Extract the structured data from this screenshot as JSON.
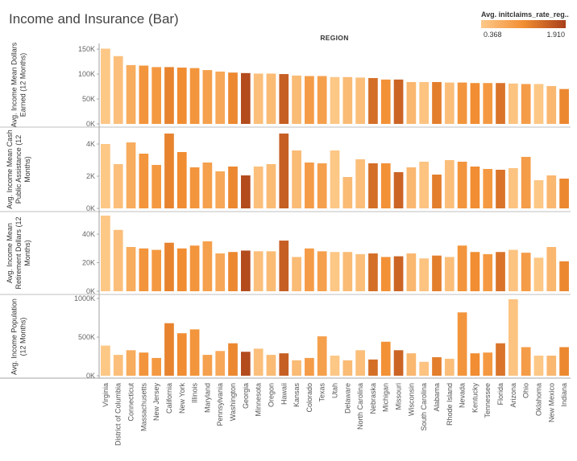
{
  "chart_data": {
    "type": "bar",
    "title": "Income and Insurance (Bar)",
    "column_header": "REGION",
    "legend": {
      "title": "Avg. initclaims_rate_reg..",
      "min": 0.368,
      "max": 1.91,
      "min_label": "0.368",
      "max_label": "1.910",
      "color_low": "#FDC98A",
      "color_high": "#A8401A"
    },
    "categories": [
      "Virginia",
      "District of Columbia",
      "Connecticut",
      "Massachusetts",
      "New Jersey",
      "California",
      "New York",
      "Illinois",
      "Maryland",
      "Pennsylvania",
      "Washington",
      "Georgia",
      "Minnesota",
      "Oregon",
      "Hawaii",
      "Kansas",
      "Colorado",
      "Texas",
      "Utah",
      "Delaware",
      "North Carolina",
      "Nebraska",
      "Michigan",
      "Missouri",
      "Wisconsin",
      "South Carolina",
      "Alabama",
      "Rhode Island",
      "Nevada",
      "Kentucky",
      "Tennessee",
      "Florida",
      "Arizona",
      "Ohio",
      "Oklahoma",
      "New Mexico",
      "Indiana"
    ],
    "color_values": [
      0.4,
      0.5,
      0.75,
      1.05,
      1.0,
      1.25,
      1.15,
      1.05,
      0.9,
      0.8,
      1.2,
      1.8,
      0.5,
      0.55,
      1.6,
      0.55,
      0.95,
      0.9,
      0.4,
      0.55,
      0.5,
      1.45,
      1.1,
      1.55,
      0.6,
      0.45,
      1.3,
      0.5,
      1.05,
      1.15,
      1.0,
      1.4,
      0.45,
      0.95,
      0.4,
      0.6,
      1.2
    ],
    "panels": [
      {
        "ylabel_lines": [
          "Avg. Income Mean Dollars",
          "Earned (12 Months)"
        ],
        "ylim": [
          0,
          155000
        ],
        "ticks": [
          0,
          50000,
          100000,
          150000
        ],
        "tick_labels": [
          "0K",
          "50K",
          "100K",
          "150K"
        ],
        "values": [
          151000,
          136000,
          118000,
          117000,
          114000,
          114000,
          113000,
          112000,
          108000,
          105000,
          103000,
          102000,
          101000,
          101000,
          100000,
          97000,
          96000,
          96000,
          94000,
          94000,
          93000,
          92000,
          89000,
          89000,
          84000,
          84000,
          84000,
          83000,
          83000,
          82000,
          82000,
          82000,
          81000,
          80000,
          80000,
          76000,
          70000
        ]
      },
      {
        "ylabel_lines": [
          "Avg. Income Mean Cash",
          "Public Assistance (12",
          "Months)"
        ],
        "ylim": [
          0,
          4800
        ],
        "ticks": [
          0,
          2000,
          4000
        ],
        "tick_labels": [
          "0K",
          "2K",
          "4K"
        ],
        "values": [
          4000,
          2750,
          4100,
          3400,
          2700,
          4650,
          3500,
          2550,
          2850,
          2300,
          2600,
          2050,
          2600,
          2750,
          4650,
          3600,
          2850,
          2800,
          3600,
          1950,
          3050,
          2800,
          2800,
          2250,
          2550,
          2900,
          2100,
          3000,
          2900,
          2600,
          2450,
          2400,
          2500,
          3200,
          1750,
          2050,
          1850
        ]
      },
      {
        "ylabel_lines": [
          "Avg. Income Mean",
          "Retirement Dollars (12",
          "Months)"
        ],
        "ylim": [
          0,
          53000
        ],
        "ticks": [
          0,
          20000,
          40000
        ],
        "tick_labels": [
          "0K",
          "20K",
          "40K"
        ],
        "values": [
          53000,
          43000,
          31000,
          30000,
          29000,
          34000,
          30000,
          32000,
          35000,
          26500,
          27500,
          28500,
          28000,
          28000,
          35500,
          24000,
          30000,
          28000,
          27500,
          27500,
          26000,
          26500,
          24000,
          24500,
          26500,
          23000,
          25000,
          24000,
          32000,
          27500,
          26000,
          27500,
          29000,
          27000,
          23500,
          31000,
          21000
        ]
      },
      {
        "ylabel_lines": [
          "Avg. Income Population",
          "(12 Months)"
        ],
        "ylim": [
          0,
          1000000
        ],
        "ticks": [
          0,
          500000,
          1000000
        ],
        "tick_labels": [
          "0K",
          "500K",
          "1000K"
        ],
        "values": [
          390000,
          270000,
          330000,
          300000,
          230000,
          680000,
          550000,
          600000,
          270000,
          320000,
          420000,
          310000,
          350000,
          270000,
          290000,
          200000,
          230000,
          510000,
          260000,
          200000,
          330000,
          210000,
          440000,
          330000,
          290000,
          180000,
          240000,
          220000,
          820000,
          290000,
          300000,
          420000,
          990000,
          370000,
          260000,
          260000,
          370000
        ]
      }
    ]
  }
}
